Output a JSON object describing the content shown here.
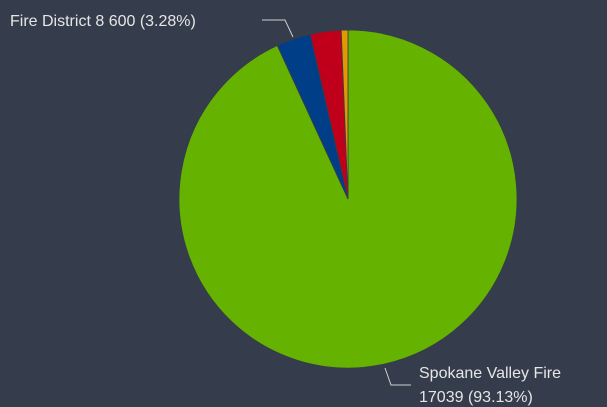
{
  "chart_data": {
    "type": "pie",
    "categories": [
      "Spokane Valley Fire",
      "Fire District 8",
      null,
      null
    ],
    "values": [
      17039,
      600,
      540,
      117
    ],
    "value_labels": [
      "17039 (93.13%)",
      "600 (3.28%)",
      null,
      null
    ],
    "colors": [
      "#66b200",
      "#003f87",
      "#c0001a",
      "#e09a00"
    ]
  }
}
